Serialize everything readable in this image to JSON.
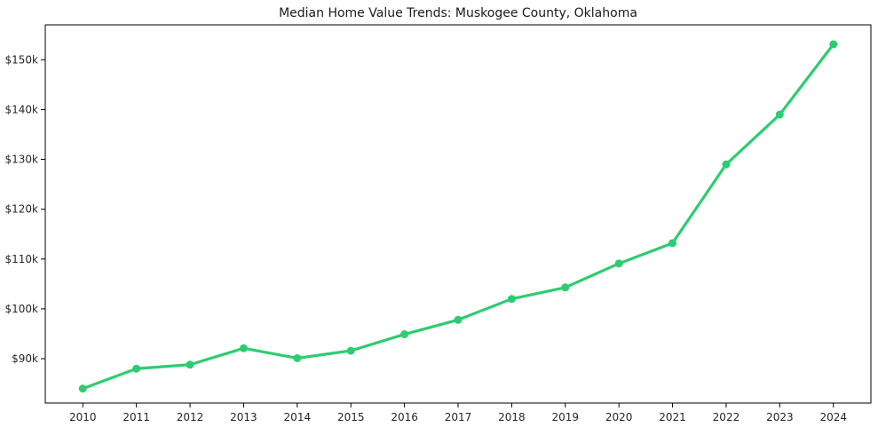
{
  "chart_data": {
    "type": "line",
    "title": "Median Home Value Trends: Muskogee County, Oklahoma",
    "series_name": "median-home-value",
    "x": [
      2010,
      2011,
      2012,
      2013,
      2014,
      2015,
      2016,
      2017,
      2018,
      2019,
      2020,
      2021,
      2022,
      2023,
      2024
    ],
    "values": [
      84000,
      88000,
      88800,
      92100,
      90100,
      91600,
      94900,
      97800,
      102000,
      104300,
      109100,
      113200,
      129000,
      139000,
      153100
    ],
    "xlabel": "",
    "ylabel": "",
    "xlim": [
      2009.3,
      2024.7
    ],
    "ylim": [
      81100,
      157000
    ],
    "yticks": [
      {
        "value": 90000,
        "label": "$90k"
      },
      {
        "value": 100000,
        "label": "$100k"
      },
      {
        "value": 110000,
        "label": "$110k"
      },
      {
        "value": 120000,
        "label": "$120k"
      },
      {
        "value": 130000,
        "label": "$130k"
      },
      {
        "value": 140000,
        "label": "$140k"
      },
      {
        "value": 150000,
        "label": "$150k"
      }
    ],
    "xtick_labels": [
      "2010",
      "2011",
      "2012",
      "2013",
      "2014",
      "2015",
      "2016",
      "2017",
      "2018",
      "2019",
      "2020",
      "2021",
      "2022",
      "2023",
      "2024"
    ],
    "grid": false,
    "legend": "none",
    "line_color": "#2ecc71",
    "marker": "circle",
    "spine_color": "#000000",
    "tick_color": "#262626"
  }
}
